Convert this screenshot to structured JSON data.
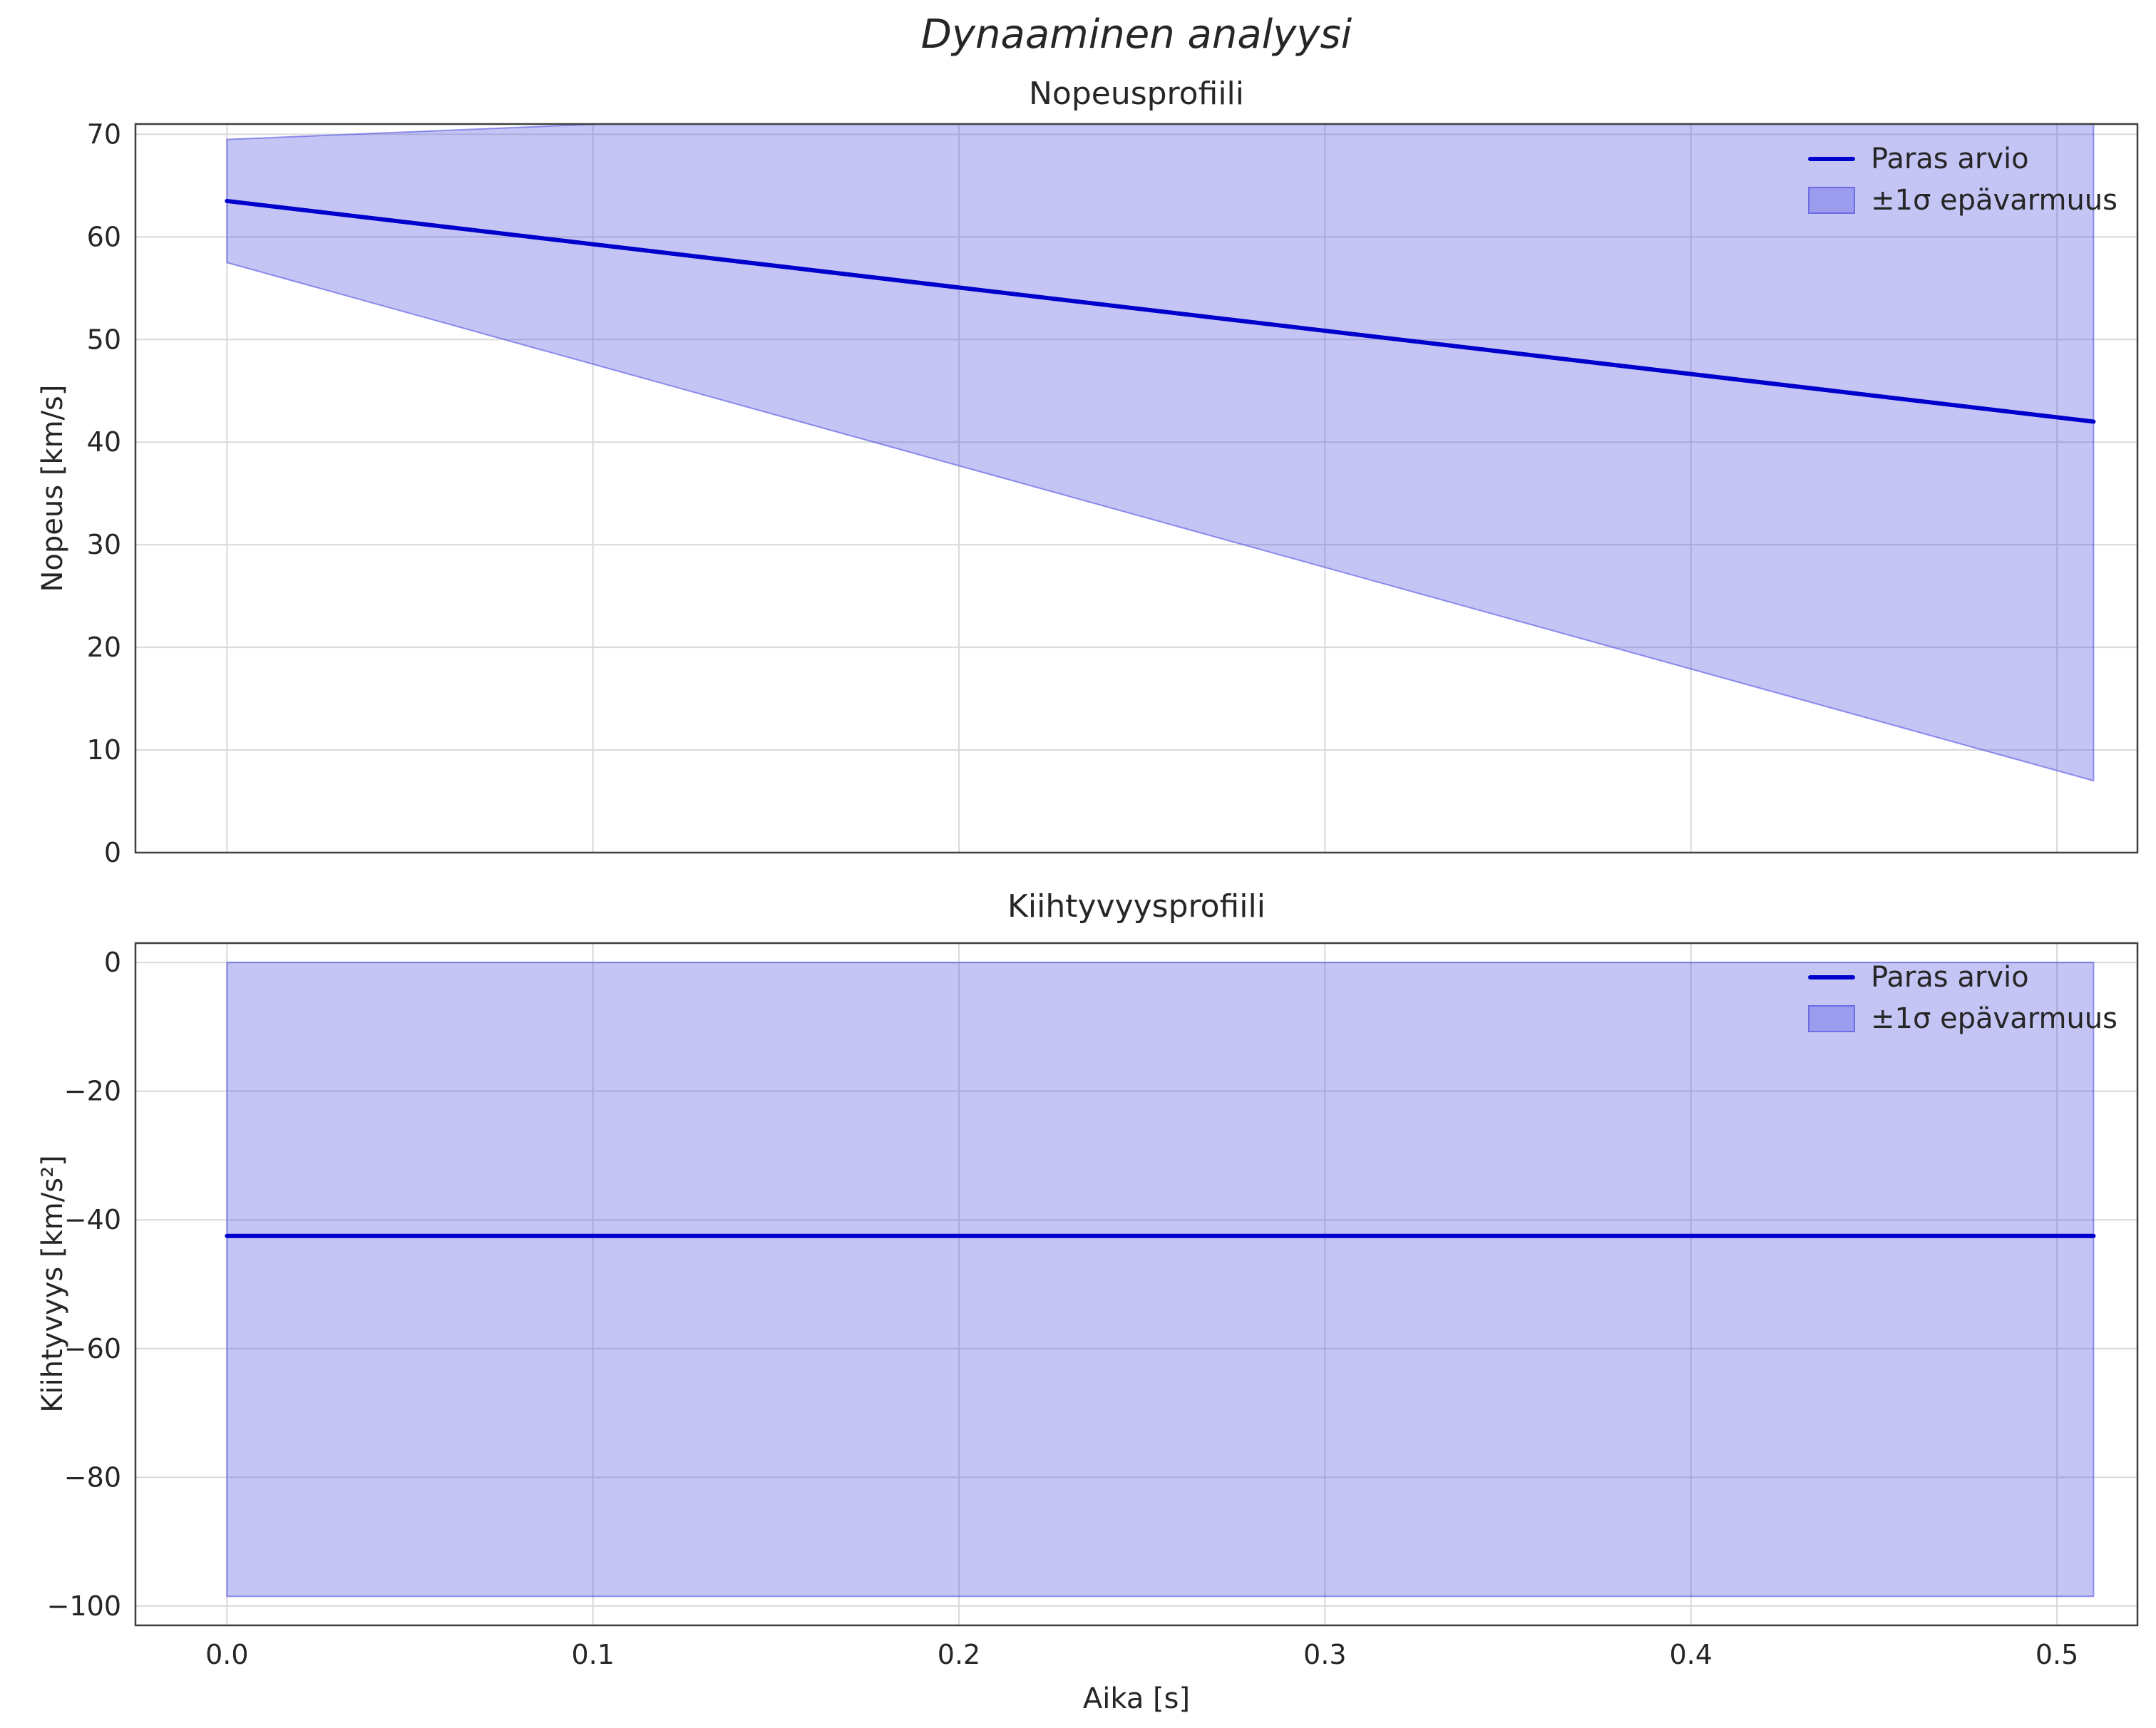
{
  "figure": {
    "suptitle": "Dynaaminen analyysi",
    "background": "#ffffff",
    "text_color": "#262626",
    "grid_color": "#d9d9d9",
    "spine_color": "#3f3f3f",
    "line_color": "#0000cd",
    "band_fill": "rgba(70,70,225,0.32)",
    "band_edge": "rgba(70,70,225,0.55)"
  },
  "legend": {
    "line_label": "Paras arvio",
    "band_label": "±1σ epävarmuus"
  },
  "chart_data": [
    {
      "type": "area",
      "title": "Nopeusprofiili",
      "ylabel": "Nopeus [km/s]",
      "x": [
        0.0,
        0.51
      ],
      "best_estimate": [
        63.5,
        42.0
      ],
      "band_upper": [
        69.5,
        77.0
      ],
      "band_lower": [
        57.5,
        7.0
      ],
      "xlim": [
        -0.025,
        0.522
      ],
      "ylim": [
        0,
        71
      ],
      "xticks": [
        0.0,
        0.1,
        0.2,
        0.3,
        0.4,
        0.5
      ],
      "xtick_labels": [
        "0.0",
        "0.1",
        "0.2",
        "0.3",
        "0.4",
        "0.5"
      ],
      "yticks": [
        0,
        10,
        20,
        30,
        40,
        50,
        60,
        70
      ],
      "ytick_labels": [
        "0",
        "10",
        "20",
        "30",
        "40",
        "50",
        "60",
        "70"
      ],
      "grid": true,
      "legend_entries": [
        "Paras arvio",
        "±1σ epävarmuus"
      ],
      "legend_position": "upper right"
    },
    {
      "type": "area",
      "title": "Kiihtyvyysprofiili",
      "ylabel": "Kiihtyvyys [km/s²]",
      "xlabel": "Aika [s]",
      "x": [
        0.0,
        0.51
      ],
      "best_estimate": [
        -42.5,
        -42.5
      ],
      "band_upper": [
        0.0,
        0.0
      ],
      "band_lower": [
        -98.5,
        -98.5
      ],
      "xlim": [
        -0.025,
        0.522
      ],
      "ylim": [
        -103,
        3
      ],
      "xticks": [
        0.0,
        0.1,
        0.2,
        0.3,
        0.4,
        0.5
      ],
      "xtick_labels": [
        "0.0",
        "0.1",
        "0.2",
        "0.3",
        "0.4",
        "0.5"
      ],
      "yticks": [
        0,
        -20,
        -40,
        -60,
        -80,
        -100
      ],
      "ytick_labels": [
        "0",
        "−20",
        "−40",
        "−60",
        "−80",
        "−100"
      ],
      "grid": true,
      "legend_entries": [
        "Paras arvio",
        "±1σ epävarmuus"
      ],
      "legend_position": "upper right"
    }
  ]
}
